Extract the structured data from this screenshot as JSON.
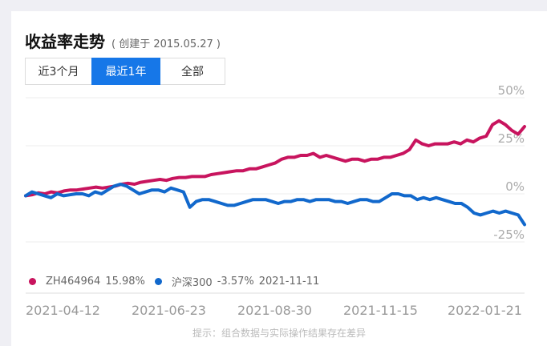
{
  "header": {
    "title": "收益率走势",
    "subtitle": "( 创建于 2015.05.27 )"
  },
  "tabs": [
    {
      "label": "近3个月",
      "active": false
    },
    {
      "label": "最近1年",
      "active": true
    },
    {
      "label": "全部",
      "active": false
    }
  ],
  "legend": [
    {
      "name": "ZH464964",
      "value": "15.98%",
      "color": "#c8145e"
    },
    {
      "name": "沪深300",
      "value": "-3.57%",
      "date": "2021-11-11",
      "color": "#1168cc"
    }
  ],
  "hint": "提示：组合数据与实际操作结果存在差异",
  "chart_data": {
    "type": "line",
    "ylim": [
      -25,
      50
    ],
    "y_ticks": [
      "50%",
      "25%",
      "0%",
      "-25%"
    ],
    "y_tick_values": [
      50,
      25,
      0,
      -25
    ],
    "x_tick_labels": [
      "2021-04-12",
      "2021-06-23",
      "2021-08-30",
      "2021-11-15",
      "2022-01-21"
    ],
    "grid": true,
    "series": [
      {
        "name": "ZH464964",
        "color": "#c8145e",
        "values": [
          -1,
          -0.5,
          0.5,
          0,
          1,
          0.5,
          1.5,
          2,
          2,
          2.5,
          3,
          3.5,
          3,
          3.5,
          4,
          5,
          5.5,
          5,
          6,
          6.5,
          7,
          7.5,
          7,
          8,
          8.5,
          8.5,
          9,
          9,
          9,
          10,
          10.5,
          11,
          11.5,
          12,
          12,
          13,
          13,
          14,
          15,
          16,
          18,
          19,
          19,
          20,
          20,
          21,
          19,
          20,
          19,
          18,
          17,
          18,
          18,
          17,
          18,
          18,
          19,
          19,
          20,
          21,
          23,
          28,
          26,
          25,
          26,
          26,
          26,
          27,
          26,
          28,
          27,
          29,
          30,
          36,
          38,
          36,
          33,
          31,
          35
        ]
      },
      {
        "name": "沪深300",
        "color": "#1168cc",
        "values": [
          -1,
          1,
          0,
          -1,
          -2,
          0,
          -1,
          -0.5,
          0,
          0,
          -1,
          1,
          0,
          2,
          4,
          5,
          4,
          2,
          0,
          1,
          2,
          2,
          1,
          3,
          2,
          1,
          -7,
          -4,
          -3,
          -3,
          -4,
          -5,
          -6,
          -6,
          -5,
          -4,
          -3,
          -3,
          -3,
          -4,
          -5,
          -4,
          -4,
          -3,
          -3,
          -4,
          -3,
          -3,
          -3,
          -4,
          -4,
          -5,
          -4,
          -3,
          -3,
          -4,
          -4,
          -2,
          0,
          0,
          -1,
          -1,
          -3,
          -2,
          -3,
          -2,
          -3,
          -4,
          -5,
          -5,
          -7,
          -10,
          -11,
          -10,
          -9,
          -10,
          -9,
          -10,
          -11,
          -16
        ]
      }
    ]
  }
}
